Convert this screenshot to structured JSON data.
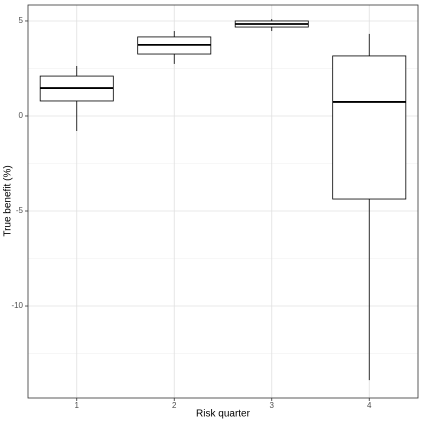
{
  "chart_data": {
    "type": "box",
    "x_label": "Risk quarter",
    "y_label": "True benefit (%)",
    "categories": [
      "1",
      "2",
      "3",
      "4"
    ],
    "low": [
      -0.79,
      2.74,
      4.47,
      -13.9
    ],
    "q1": [
      0.79,
      3.26,
      4.68,
      -4.37
    ],
    "median": [
      1.47,
      3.74,
      4.84,
      0.74
    ],
    "q3": [
      2.1,
      4.16,
      5.0,
      3.16
    ],
    "high": [
      2.63,
      4.47,
      5.1,
      4.32
    ],
    "ylim": [
      -14.84,
      5.84
    ],
    "yticks": [
      -10,
      -5,
      0,
      5
    ],
    "y_minor_grid": [
      -12.5,
      -7.5,
      -2.5,
      2.5
    ],
    "grid": true,
    "color": "#000000"
  }
}
